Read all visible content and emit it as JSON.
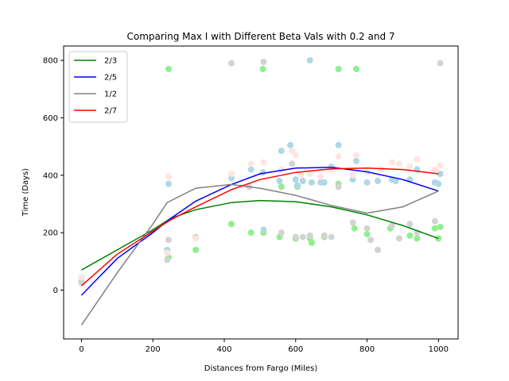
{
  "chart_data": {
    "type": "line",
    "title": "Comparing Max I with Different Beta Vals with 0.2 and 7",
    "xlabel": "Distances from Fargo (Miles)",
    "ylabel": "Time (Days)",
    "xlim": [
      -50,
      1055
    ],
    "ylim": [
      -170,
      850
    ],
    "xticks": [
      0,
      200,
      400,
      600,
      800,
      1000
    ],
    "yticks": [
      0,
      200,
      400,
      600,
      800
    ],
    "grid": false,
    "legend_position": "upper-left",
    "series": [
      {
        "name": "2/3",
        "color": "#008000",
        "x": [
          0,
          100,
          200,
          250,
          320,
          420,
          500,
          600,
          700,
          800,
          900,
          1000
        ],
        "y": [
          70,
          140,
          210,
          250,
          280,
          305,
          312,
          308,
          290,
          262,
          225,
          180
        ]
      },
      {
        "name": "2/5",
        "color": "#0000ff",
        "x": [
          0,
          100,
          200,
          250,
          320,
          420,
          500,
          600,
          700,
          800,
          900,
          1000
        ],
        "y": [
          -18,
          110,
          200,
          250,
          310,
          368,
          405,
          425,
          428,
          412,
          385,
          345
        ]
      },
      {
        "name": "1/2",
        "color": "#808080",
        "x": [
          0,
          100,
          200,
          240,
          320,
          420,
          500,
          600,
          700,
          800,
          900,
          1000
        ],
        "y": [
          -122,
          60,
          230,
          305,
          355,
          368,
          355,
          330,
          295,
          268,
          290,
          345
        ]
      },
      {
        "name": "2/7",
        "color": "#ff0000",
        "x": [
          0,
          100,
          200,
          250,
          320,
          420,
          500,
          600,
          700,
          800,
          900,
          1000
        ],
        "y": [
          15,
          125,
          205,
          245,
          290,
          350,
          385,
          410,
          422,
          425,
          420,
          405
        ]
      }
    ],
    "scatter_groups": [
      {
        "color": "#90ee90",
        "x": [
          0,
          244,
          244,
          320,
          420,
          475,
          508,
          510,
          555,
          560,
          600,
          605,
          640,
          645,
          680,
          720,
          720,
          765,
          770,
          800,
          830,
          865,
          920,
          940,
          990,
          1000,
          1005
        ],
        "y": [
          30,
          770,
          115,
          140,
          230,
          200,
          770,
          200,
          185,
          360,
          180,
          360,
          180,
          165,
          185,
          370,
          770,
          215,
          770,
          195,
          140,
          215,
          190,
          180,
          215,
          180,
          220
        ]
      },
      {
        "color": "#add8e6",
        "x": [
          0,
          240,
          244,
          320,
          420,
          475,
          508,
          510,
          555,
          560,
          585,
          600,
          605,
          620,
          640,
          645,
          670,
          680,
          700,
          720,
          760,
          770,
          800,
          830,
          870,
          880,
          920,
          940,
          990,
          1000,
          1005
        ],
        "y": [
          45,
          140,
          370,
          185,
          390,
          420,
          410,
          210,
          380,
          485,
          505,
          385,
          365,
          380,
          800,
          375,
          375,
          375,
          430,
          505,
          385,
          450,
          375,
          380,
          385,
          380,
          385,
          420,
          375,
          370,
          405
        ]
      },
      {
        "color": "#d3d3d3",
        "x": [
          0,
          240,
          244,
          320,
          420,
          470,
          510,
          560,
          590,
          600,
          620,
          640,
          680,
          700,
          720,
          760,
          800,
          810,
          830,
          870,
          890,
          920,
          940,
          990,
          1005
        ],
        "y": [
          25,
          105,
          175,
          185,
          790,
          360,
          795,
          200,
          440,
          185,
          185,
          190,
          190,
          185,
          360,
          235,
          215,
          175,
          140,
          225,
          180,
          230,
          200,
          240,
          790
        ]
      },
      {
        "color": "#ffe4e1",
        "x": [
          0,
          240,
          244,
          320,
          420,
          475,
          510,
          560,
          590,
          600,
          615,
          640,
          670,
          700,
          720,
          760,
          770,
          800,
          840,
          870,
          890,
          920,
          940,
          990,
          1005
        ],
        "y": [
          45,
          130,
          395,
          180,
          405,
          440,
          445,
          420,
          485,
          470,
          400,
          405,
          395,
          420,
          465,
          400,
          470,
          410,
          420,
          445,
          440,
          430,
          455,
          420,
          435
        ]
      }
    ]
  }
}
